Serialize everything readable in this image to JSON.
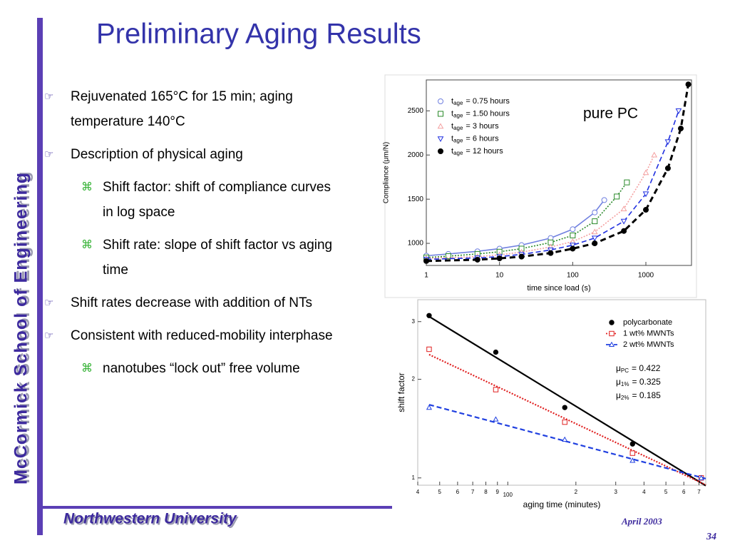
{
  "slide": {
    "title": "Preliminary Aging Results",
    "sidebar": "McCormick School of Engineering",
    "footer": "Northwestern University",
    "date": "April 2003",
    "page": "34",
    "bullets": [
      {
        "marker": "☞",
        "text": "Rejuvenated 165°C for 15 min; aging temperature 140°C"
      },
      {
        "marker": "☞",
        "text": "Description of physical aging",
        "children": [
          {
            "marker": "⌘",
            "text": "Shift factor: shift of compliance curves in log space"
          },
          {
            "marker": "⌘",
            "text": "Shift rate: slope of shift factor vs aging time"
          }
        ]
      },
      {
        "marker": "☞",
        "text": "Shift rates decrease with addition of NTs"
      },
      {
        "marker": "☞",
        "text": "Consistent with reduced-mobility interphase",
        "children": [
          {
            "marker": "⌘",
            "text": "nanotubes “lock out” free volume"
          }
        ]
      }
    ]
  },
  "chart_data": [
    {
      "type": "scatter",
      "lines": "connect",
      "xscale": "log",
      "xlabel": "time since load (s)",
      "ylabel": "Compliance (μm/N)",
      "xlim": [
        1,
        4200
      ],
      "ylim": [
        750,
        2850
      ],
      "xticks": [
        1,
        10,
        100,
        1000
      ],
      "yticks": [
        1000,
        1500,
        2000,
        2500
      ],
      "legend": "upper left",
      "annotation": "pure PC",
      "series": [
        {
          "name": "t",
          "name_sub": "age",
          "name_rest": "= 0.75 hours",
          "marker": "circle",
          "filled": false,
          "color": "#7080e0",
          "line": "solid",
          "x": [
            1,
            2,
            5,
            10,
            20,
            50,
            100,
            200,
            270
          ],
          "values": [
            860,
            880,
            910,
            940,
            980,
            1060,
            1160,
            1350,
            1490
          ]
        },
        {
          "name": "t",
          "name_sub": "age",
          "name_rest": "= 1.50 hours",
          "marker": "square",
          "filled": false,
          "color": "#2a8a2a",
          "line": "dotted",
          "x": [
            1,
            2,
            5,
            10,
            20,
            50,
            100,
            200,
            400,
            550
          ],
          "values": [
            840,
            855,
            880,
            905,
            940,
            1010,
            1090,
            1250,
            1530,
            1690
          ]
        },
        {
          "name": "t",
          "name_sub": "age",
          "name_rest": "= 3 hours",
          "marker": "triangle",
          "filled": false,
          "color": "#f4a0a0",
          "line": "dotted",
          "x": [
            1,
            5,
            10,
            20,
            50,
            100,
            200,
            500,
            1000,
            1300
          ],
          "values": [
            830,
            850,
            870,
            900,
            960,
            1020,
            1130,
            1390,
            1800,
            2000
          ]
        },
        {
          "name": "t",
          "name_sub": "age",
          "name_rest": "= 6 hours",
          "marker": "triangle-down",
          "filled": false,
          "color": "#2030e0",
          "line": "dashed",
          "x": [
            1,
            5,
            10,
            20,
            50,
            100,
            200,
            500,
            1000,
            2000,
            2800
          ],
          "values": [
            820,
            835,
            850,
            875,
            925,
            980,
            1060,
            1250,
            1560,
            2150,
            2500
          ]
        },
        {
          "name": "t",
          "name_sub": "age",
          "name_rest": "= 12 hours",
          "marker": "circle",
          "filled": true,
          "color": "#000000",
          "line": "dashed-thick",
          "x": [
            1,
            5,
            10,
            20,
            50,
            100,
            200,
            500,
            1000,
            2000,
            3000,
            3800
          ],
          "values": [
            800,
            815,
            830,
            850,
            890,
            940,
            1000,
            1140,
            1380,
            1850,
            2300,
            2800
          ]
        }
      ]
    },
    {
      "type": "scatter",
      "lines": "fit",
      "xscale": "log",
      "yscale": "log",
      "xlabel": "aging time (minutes)",
      "ylabel": "shift factor",
      "xlim": [
        40,
        750
      ],
      "ylim": [
        0.95,
        3.5
      ],
      "xticks": [
        {
          "value": 40,
          "label": "4"
        },
        {
          "value": 50,
          "label": "5"
        },
        {
          "value": 60,
          "label": "6"
        },
        {
          "value": 70,
          "label": "7"
        },
        {
          "value": 80,
          "label": "8"
        },
        {
          "value": 90,
          "label": "9"
        },
        100,
        {
          "value": 200,
          "label": "2"
        },
        {
          "value": 300,
          "label": "3"
        },
        {
          "value": 400,
          "label": "4"
        },
        {
          "value": 500,
          "label": "5"
        },
        {
          "value": 600,
          "label": "6"
        },
        {
          "value": 700,
          "label": "7"
        }
      ],
      "yticks": [
        1,
        2,
        3
      ],
      "legend": "upper right",
      "annotations": [
        {
          "symbol": "μ",
          "sub": "PC",
          "text": "= 0.422"
        },
        {
          "symbol": "μ",
          "sub": "1%",
          "text": "= 0.325"
        },
        {
          "symbol": "μ",
          "sub": "2%",
          "text": "= 0.185"
        }
      ],
      "series": [
        {
          "name": "polycarbonate",
          "marker": "circle",
          "filled": true,
          "color": "#000000",
          "line": "solid",
          "x": [
            44.9,
            88.5,
            178.6,
            356,
            716
          ],
          "values": [
            3.13,
            2.42,
            1.64,
            1.27,
            1.0
          ]
        },
        {
          "name": "1 wt% MWNTs",
          "marker": "square",
          "filled": false,
          "color": "#e02020",
          "line": "dotted",
          "x": [
            44.9,
            88.5,
            178.6,
            356,
            716
          ],
          "values": [
            2.47,
            1.86,
            1.48,
            1.19,
            1.0
          ]
        },
        {
          "name": "2 wt% MWNTs",
          "marker": "triangle",
          "filled": false,
          "color": "#2040e0",
          "line": "dashed",
          "x": [
            44.9,
            88.5,
            178.6,
            356,
            716
          ],
          "values": [
            1.64,
            1.51,
            1.31,
            1.13,
            1.0
          ]
        }
      ]
    }
  ]
}
